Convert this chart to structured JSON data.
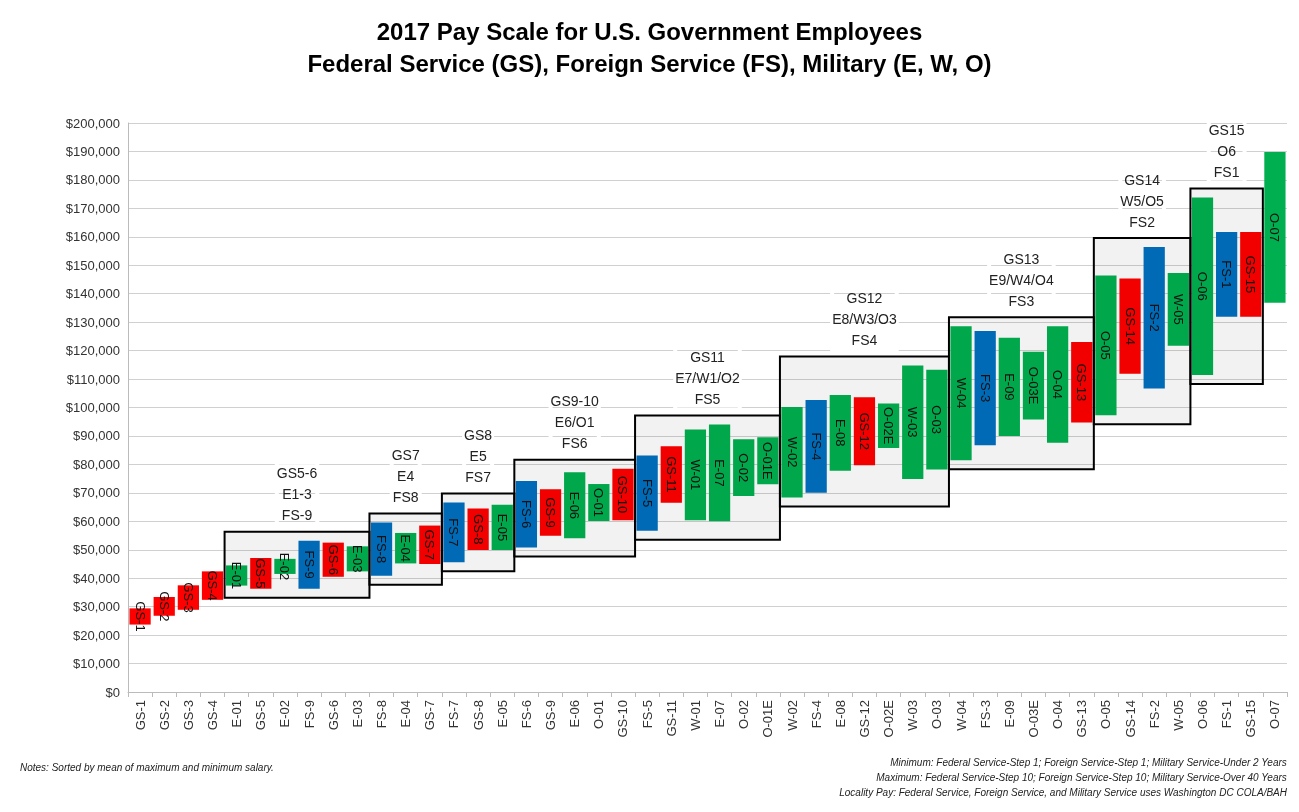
{
  "chart_data": {
    "type": "bar",
    "title": "2017 Pay Scale for U.S. Government Employees",
    "subtitle": "Federal Service (GS), Foreign Service (FS), Military (E, W, O)",
    "categories": [
      "GS-1",
      "GS-2",
      "GS-3",
      "GS-4",
      "E-01",
      "GS-5",
      "E-02",
      "FS-9",
      "GS-6",
      "E-03",
      "FS-8",
      "E-04",
      "GS-7",
      "FS-7",
      "GS-8",
      "E-05",
      "FS-6",
      "GS-9",
      "E-06",
      "O-01",
      "GS-10",
      "FS-5",
      "GS-11",
      "W-01",
      "E-07",
      "O-02",
      "O-01E",
      "W-02",
      "FS-4",
      "E-08",
      "GS-12",
      "O-02E",
      "W-03",
      "O-03",
      "W-04",
      "FS-3",
      "E-09",
      "O-03E",
      "O-04",
      "GS-13",
      "O-05",
      "GS-14",
      "FS-2",
      "W-05",
      "O-06",
      "FS-1",
      "GS-15",
      "O-07"
    ],
    "base": [
      23700,
      26800,
      28900,
      32400,
      37400,
      36300,
      41500,
      36300,
      40500,
      42400,
      40900,
      45200,
      45000,
      45600,
      49900,
      49900,
      50800,
      54900,
      54000,
      60100,
      60400,
      56700,
      66500,
      60400,
      60000,
      68900,
      73000,
      68400,
      70000,
      77800,
      79700,
      85800,
      74900,
      78200,
      81500,
      86700,
      90000,
      95800,
      87600,
      94700,
      97300,
      111900,
      106700,
      121700,
      111400,
      131900,
      131900,
      136800
    ],
    "values": [
      5700,
      6600,
      8600,
      10000,
      7100,
      10800,
      5300,
      16900,
      12000,
      8800,
      18700,
      10700,
      13500,
      21000,
      14600,
      15900,
      23400,
      16400,
      23200,
      13000,
      18100,
      26400,
      19900,
      31900,
      34000,
      19900,
      16500,
      31800,
      32600,
      26600,
      23900,
      15600,
      39900,
      35100,
      47100,
      40200,
      34500,
      23800,
      41000,
      28300,
      49100,
      33400,
      49700,
      25600,
      62400,
      29800,
      29800,
      53000
    ],
    "colors": [
      "#ff0000",
      "#ff0000",
      "#ff0000",
      "#ff0000",
      "#00b050",
      "#ff0000",
      "#00b050",
      "#0070c0",
      "#ff0000",
      "#00b050",
      "#0070c0",
      "#00b050",
      "#ff0000",
      "#0070c0",
      "#ff0000",
      "#00b050",
      "#0070c0",
      "#ff0000",
      "#00b050",
      "#00b050",
      "#ff0000",
      "#0070c0",
      "#ff0000",
      "#00b050",
      "#00b050",
      "#00b050",
      "#00b050",
      "#00b050",
      "#0070c0",
      "#00b050",
      "#ff0000",
      "#00b050",
      "#00b050",
      "#00b050",
      "#00b050",
      "#0070c0",
      "#00b050",
      "#00b050",
      "#00b050",
      "#ff0000",
      "#00b050",
      "#ff0000",
      "#0070c0",
      "#00b050",
      "#00b050",
      "#0070c0",
      "#ff0000",
      "#00b050"
    ],
    "value_labels": [
      "GS-1",
      "GS-2",
      "GS-3",
      "GS-4",
      "E-01",
      "GS-5",
      "E-02",
      "FS-9",
      "GS-6",
      "E-03",
      "FS-8",
      "E-04",
      "GS-7",
      "FS-7",
      "GS-8",
      "E-05",
      "FS-6",
      "GS-9",
      "E-06",
      "O-01",
      "GS-10",
      "FS-5",
      "GS-11",
      "W-01",
      "E-07",
      "O-02",
      "O-01E",
      "W-02",
      "FS-4",
      "E-08",
      "GS-12",
      "O-02E",
      "W-03",
      "O-03",
      "W-04",
      "FS-3",
      "E-09",
      "O-03E",
      "O-04",
      "GS-13",
      "O-05",
      "GS-14",
      "FS-2",
      "W-05",
      "O-06",
      "FS-1",
      "GS-15",
      "O-07"
    ],
    "bands": [
      {
        "axis": "x",
        "from": "E-01",
        "to": "E-03",
        "label": "GS5-6\nE1-3\nFS-9",
        "color": "#000000"
      },
      {
        "axis": "x",
        "from": "FS-8",
        "to": "GS-7",
        "label": "GS7\nE4\nFS8",
        "color": "#000000"
      },
      {
        "axis": "x",
        "from": "FS-7",
        "to": "E-05",
        "label": "GS8\nE5\nFS7",
        "color": "#000000"
      },
      {
        "axis": "x",
        "from": "FS-6",
        "to": "GS-10",
        "label": "GS9-10\nE6/O1\nFS6",
        "color": "#000000"
      },
      {
        "axis": "x",
        "from": "FS-5",
        "to": "O-01E",
        "label": "GS11\nE7/W1/O2\nFS5",
        "color": "#000000"
      },
      {
        "axis": "x",
        "from": "W-02",
        "to": "O-03",
        "label": "GS12\nE8/W3/O3\nFS4",
        "color": "#000000"
      },
      {
        "axis": "x",
        "from": "W-04",
        "to": "GS-13",
        "label": "GS13\nE9/W4/O4\nFS3",
        "color": "#000000"
      },
      {
        "axis": "x",
        "from": "O-05",
        "to": "W-05",
        "label": "GS14\nW5/O5\nFS2",
        "color": "#000000"
      },
      {
        "axis": "x",
        "from": "O-06",
        "to": "GS-15",
        "label": "GS15\nO6\nFS1",
        "color": "#000000"
      }
    ],
    "annotations": [
      "Notes: Sorted by mean of maximum and minimum salary.",
      "Minimum: Federal Service-Step 1; Foreign Service-Step 1; Military Service-Under 2 Years",
      "Maximum: Federal Service-Step 10; Foreign Service-Step 10; Military Service-Over 40 Years",
      "Locality Pay: Federal Service, Foreign Service, and Military Service uses Washington DC COLA/BAH"
    ],
    "ylim": [
      0,
      200000
    ],
    "yticks": [
      {
        "value": 0,
        "label": "$0"
      },
      {
        "value": 10000,
        "label": "$10,000"
      },
      {
        "value": 20000,
        "label": "$20,000"
      },
      {
        "value": 30000,
        "label": "$30,000"
      },
      {
        "value": 40000,
        "label": "$40,000"
      },
      {
        "value": 50000,
        "label": "$50,000"
      },
      {
        "value": 60000,
        "label": "$60,000"
      },
      {
        "value": 70000,
        "label": "$70,000"
      },
      {
        "value": 80000,
        "label": "$80,000"
      },
      {
        "value": 90000,
        "label": "$90,000"
      },
      {
        "value": 100000,
        "label": "$100,000"
      },
      {
        "value": 110000,
        "label": "$110,000"
      },
      {
        "value": 120000,
        "label": "$120,000"
      },
      {
        "value": 130000,
        "label": "$130,000"
      },
      {
        "value": 140000,
        "label": "$140,000"
      },
      {
        "value": 150000,
        "label": "$150,000"
      },
      {
        "value": 160000,
        "label": "$160,000"
      },
      {
        "value": 170000,
        "label": "$170,000"
      },
      {
        "value": 180000,
        "label": "$180,000"
      },
      {
        "value": 190000,
        "label": "$190,000"
      },
      {
        "value": 200000,
        "label": "$200,000"
      }
    ],
    "grid": "y"
  }
}
